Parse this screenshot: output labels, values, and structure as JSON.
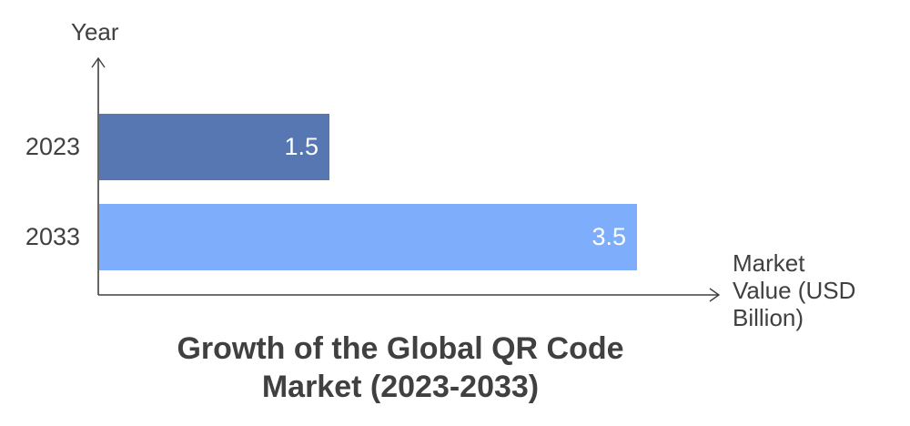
{
  "chart_data": {
    "type": "bar",
    "orientation": "horizontal",
    "title": "Growth of the Global QR Code Market (2023-2033)",
    "title_lines": [
      "Growth of the Global QR Code",
      "Market (2023-2033)"
    ],
    "xlabel": "Market Value (USD Billion)",
    "xlabel_lines": [
      "Market",
      "Value (USD",
      "Billion)"
    ],
    "ylabel": "Year",
    "categories": [
      "2023",
      "2033"
    ],
    "values": [
      1.5,
      3.5
    ],
    "data_labels": [
      "1.5",
      "3.5"
    ],
    "bar_colors": [
      "#5677b1",
      "#7eaefb"
    ],
    "grid": false,
    "legend": null,
    "xlim": [
      0,
      4.1
    ]
  },
  "colors": {
    "axis": "#404040",
    "text": "#404040",
    "label_on_bar": "#ffffff",
    "bar_2023": "#5677b1",
    "bar_2033": "#7eaefb"
  }
}
